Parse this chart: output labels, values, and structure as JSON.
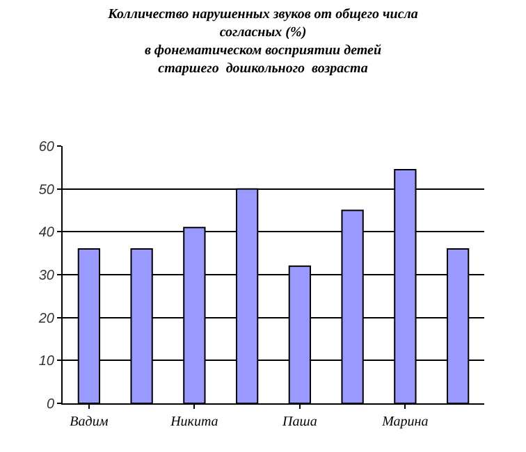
{
  "chart_data": {
    "type": "bar",
    "title": "Колличество нарушенных звуков от общего числа\nсогласных (%)\nв фонематическом восприятии детей\nстаршего  дошкольного  возраста",
    "categories": [
      "Вадим",
      null,
      "Никита",
      null,
      "Паша",
      null,
      "Марина",
      null
    ],
    "values": [
      36,
      36,
      41,
      50,
      32,
      45,
      54.5,
      36
    ],
    "color": "#9999ff",
    "ylim": [
      0,
      60
    ],
    "yticks": [
      0,
      10,
      20,
      30,
      40,
      50,
      60
    ],
    "grid": "y"
  }
}
